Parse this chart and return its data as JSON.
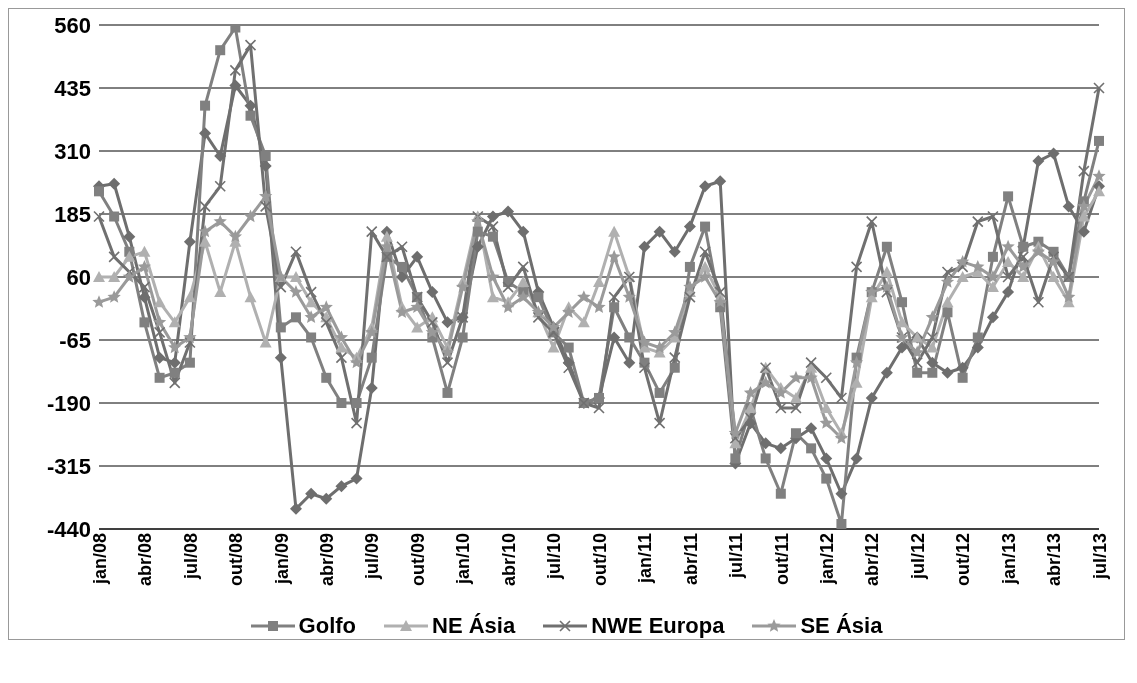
{
  "chart_data": {
    "type": "line",
    "categories": [
      "jan/08",
      null,
      null,
      "abr/08",
      null,
      null,
      "jul/08",
      null,
      null,
      "out/08",
      null,
      null,
      "jan/09",
      null,
      null,
      "abr/09",
      null,
      null,
      "jul/09",
      null,
      null,
      "out/09",
      null,
      null,
      "jan/10",
      null,
      null,
      "abr/10",
      null,
      null,
      "jul/10",
      null,
      null,
      "out/10",
      null,
      null,
      "jan/11",
      null,
      null,
      "abr/11",
      null,
      null,
      "jul/11",
      null,
      null,
      "out/11",
      null,
      null,
      "jan/12",
      null,
      null,
      "abr/12",
      null,
      null,
      "jul/12",
      null,
      null,
      "out/12",
      null,
      null,
      "jan/13",
      null,
      null,
      "abr/13",
      null,
      null,
      "jul/13"
    ],
    "series": [
      {
        "color": "#6e6e6e",
        "marker": "diamond",
        "values": [
          240,
          245,
          140,
          20,
          -100,
          -110,
          130,
          345,
          300,
          440,
          400,
          280,
          -100,
          -400,
          -370,
          -380,
          -355,
          -340,
          -160,
          150,
          60,
          100,
          30,
          -30,
          -20,
          120,
          180,
          190,
          150,
          30,
          -40,
          -110,
          -190,
          -180,
          -60,
          -110,
          120,
          150,
          110,
          160,
          240,
          250,
          -310,
          -230,
          -270,
          -280,
          -260,
          -240,
          -300,
          -370,
          -300,
          -180,
          -130,
          -80,
          -60,
          -110,
          -130,
          -120,
          -80,
          -20,
          30,
          120,
          290,
          305,
          200,
          150,
          240
        ]
      },
      {
        "name": "Golfo",
        "color": "#808080",
        "marker": "square",
        "values": [
          230,
          180,
          110,
          -30,
          -140,
          -130,
          -110,
          400,
          510,
          555,
          380,
          300,
          -40,
          -20,
          -60,
          -140,
          -190,
          -190,
          -100,
          100,
          80,
          20,
          -60,
          -170,
          -60,
          150,
          140,
          50,
          30,
          20,
          -50,
          -80,
          -190,
          -180,
          0,
          -60,
          -110,
          -170,
          -120,
          80,
          160,
          0,
          -300,
          -200,
          -300,
          -370,
          -250,
          -280,
          -340,
          -430,
          -100,
          30,
          120,
          10,
          -130,
          -130,
          -10,
          -140,
          -60,
          100,
          220,
          120,
          130,
          110,
          60,
          210,
          330
        ]
      },
      {
        "name": "NE Ásia",
        "color": "#b0b0b0",
        "marker": "triangle",
        "values": [
          60,
          60,
          100,
          110,
          10,
          -30,
          20,
          130,
          30,
          130,
          20,
          -70,
          60,
          60,
          10,
          -20,
          -80,
          -100,
          -40,
          140,
          0,
          -40,
          -20,
          -80,
          50,
          180,
          20,
          10,
          50,
          -10,
          -80,
          0,
          -30,
          50,
          150,
          60,
          -80,
          -90,
          -60,
          30,
          80,
          20,
          -270,
          -200,
          -120,
          -160,
          -180,
          -120,
          -200,
          -250,
          -150,
          20,
          70,
          -30,
          -60,
          -80,
          10,
          60,
          70,
          40,
          90,
          60,
          120,
          60,
          10,
          180,
          230
        ]
      },
      {
        "name": "NWE Europa",
        "color": "#707070",
        "marker": "cross",
        "values": [
          180,
          100,
          70,
          40,
          -50,
          -150,
          -70,
          200,
          240,
          470,
          520,
          200,
          40,
          110,
          30,
          -30,
          -100,
          -230,
          150,
          100,
          120,
          20,
          -30,
          -110,
          -20,
          180,
          160,
          40,
          80,
          -20,
          -50,
          -120,
          -190,
          -200,
          20,
          60,
          -120,
          -230,
          -100,
          20,
          110,
          30,
          -260,
          -220,
          -120,
          -200,
          -200,
          -110,
          -140,
          -180,
          80,
          170,
          30,
          -60,
          -110,
          -60,
          70,
          80,
          170,
          180,
          60,
          100,
          10,
          100,
          60,
          270,
          435
        ]
      },
      {
        "name": "SE Ásia",
        "color": "#9a9a9a",
        "marker": "star",
        "values": [
          10,
          20,
          60,
          80,
          -30,
          -80,
          -60,
          150,
          170,
          140,
          180,
          220,
          60,
          30,
          -20,
          0,
          -60,
          -110,
          -50,
          120,
          -10,
          0,
          -50,
          -90,
          40,
          170,
          60,
          0,
          20,
          -10,
          -40,
          -10,
          20,
          0,
          100,
          20,
          -70,
          -80,
          -50,
          40,
          60,
          10,
          -250,
          -170,
          -150,
          -170,
          -140,
          -140,
          -230,
          -260,
          -110,
          30,
          40,
          -60,
          -90,
          -20,
          50,
          90,
          80,
          60,
          120,
          80,
          110,
          90,
          20,
          200,
          260
        ]
      }
    ],
    "ylim": [
      -440,
      560
    ],
    "yticks": [
      -440,
      -315,
      -190,
      -65,
      60,
      185,
      310,
      435,
      560
    ],
    "grid": "y",
    "legend": "bottom",
    "line_style": "solid"
  }
}
